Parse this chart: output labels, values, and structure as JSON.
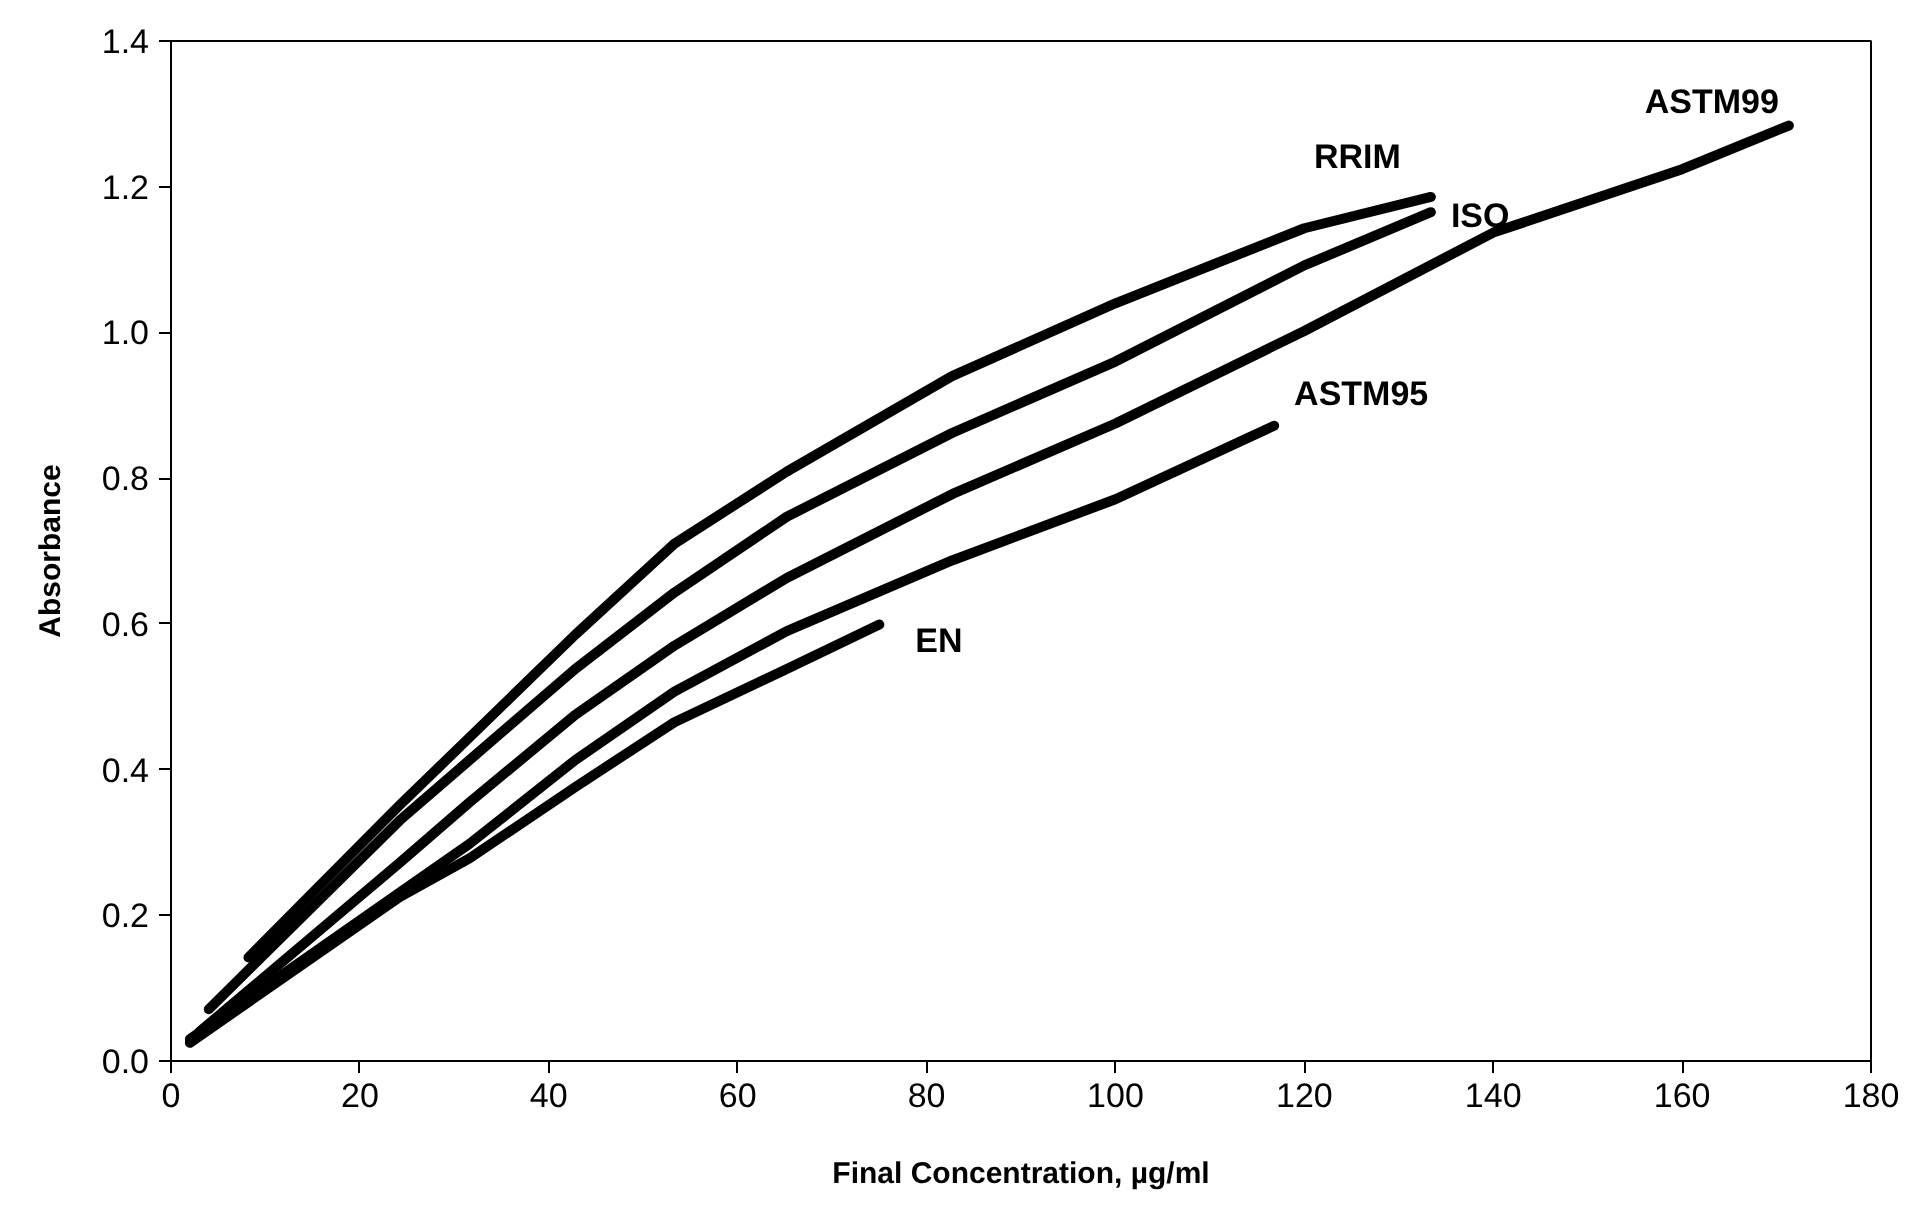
{
  "chart_data": {
    "type": "line",
    "xlabel": "Final Concentration, µg/ml",
    "ylabel": "Absorbance",
    "xlim": [
      0,
      180
    ],
    "xticks": [
      0,
      20,
      40,
      60,
      80,
      100,
      120,
      140,
      160,
      180
    ],
    "ylim": [
      0,
      1.4
    ],
    "yticks": [
      {
        "value": 0,
        "label": "0.0"
      },
      0.2,
      0.4,
      0.6,
      0.8,
      {
        "value": 1,
        "label": "1.0"
      },
      1.2,
      1.4
    ],
    "grid": false,
    "legend": false,
    "marker": "none",
    "line_style": "solid",
    "series": [
      {
        "name": "RRIM",
        "color": "#000000",
        "x": [
          8.2,
          24.2,
          31.6,
          42.8,
          53.3,
          65.2,
          82.7,
          100,
          120,
          133.4
        ],
        "values": [
          0.142,
          0.351,
          0.444,
          0.585,
          0.71,
          0.809,
          0.94,
          1.04,
          1.143,
          1.186
        ]
      },
      {
        "name": "ISO",
        "color": "#000000",
        "x": [
          4,
          24.2,
          31.6,
          42.8,
          53.3,
          65.2,
          82.7,
          100,
          120,
          133.4
        ],
        "values": [
          0.071,
          0.33,
          0.413,
          0.538,
          0.643,
          0.747,
          0.862,
          0.96,
          1.092,
          1.165
        ]
      },
      {
        "name": "ASTM99",
        "color": "#000000",
        "x": [
          3,
          24.2,
          31.6,
          42.8,
          53.3,
          65.2,
          82.7,
          100,
          120,
          140,
          160,
          171.3
        ],
        "values": [
          0.04,
          0.272,
          0.355,
          0.475,
          0.57,
          0.663,
          0.778,
          0.875,
          1.002,
          1.137,
          1.224,
          1.284
        ]
      },
      {
        "name": "ASTM95",
        "color": "#000000",
        "x": [
          2,
          24.2,
          31.6,
          42.8,
          53.3,
          65.2,
          82.7,
          100,
          116.8
        ],
        "values": [
          0.03,
          0.231,
          0.298,
          0.413,
          0.507,
          0.59,
          0.687,
          0.771,
          0.872
        ]
      },
      {
        "name": "EN",
        "color": "#000000",
        "x": [
          2,
          24.2,
          31.6,
          42.8,
          53.3,
          65.2,
          75
        ],
        "values": [
          0.025,
          0.225,
          0.278,
          0.376,
          0.465,
          0.538,
          0.599
        ]
      }
    ]
  }
}
